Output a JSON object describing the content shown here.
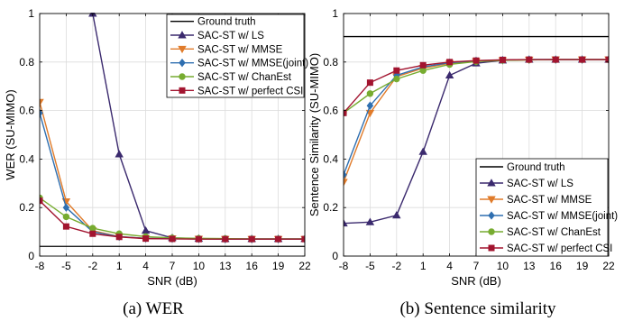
{
  "colors": {
    "ground_truth": "#000000",
    "ls": "#3b2a6e",
    "mmse": "#e07b2a",
    "mmse_joint": "#2f6fb0",
    "chanest": "#77ac30",
    "perfect": "#a2142f"
  },
  "captions": [
    "(a) WER",
    "(b) Sentence similarity"
  ],
  "chart_data": [
    {
      "type": "line",
      "xlabel": "SNR (dB)",
      "ylabel": "WER (SU-MIMO)",
      "x": [
        -8,
        -5,
        -2,
        1,
        4,
        7,
        10,
        13,
        16,
        19,
        22
      ],
      "xticks": [
        "-8",
        "-5",
        "-2",
        "1",
        "4",
        "7",
        "10",
        "13",
        "16",
        "19",
        "22"
      ],
      "ylim": [
        0,
        1
      ],
      "yticks": [
        "0",
        "0.2",
        "0.4",
        "0.6",
        "0.8",
        "1"
      ],
      "grid": true,
      "legend_position": "top-right",
      "series": [
        {
          "name": "Ground truth",
          "marker": "none",
          "color_key": "ground_truth",
          "values": [
            0.04,
            0.04,
            0.04,
            0.04,
            0.04,
            0.04,
            0.04,
            0.04,
            0.04,
            0.04,
            0.04
          ]
        },
        {
          "name": "SAC-ST w/ LS",
          "marker": "triangle-up",
          "color_key": "ls",
          "values": [
            null,
            null,
            1.0,
            0.42,
            0.105,
            0.075,
            0.072,
            0.071,
            0.071,
            0.071,
            0.071
          ]
        },
        {
          "name": "SAC-ST w/ MMSE",
          "marker": "triangle-down",
          "color_key": "mmse",
          "values": [
            0.635,
            0.225,
            0.105,
            0.08,
            0.073,
            0.072,
            0.071,
            0.07,
            0.07,
            0.07,
            0.07
          ]
        },
        {
          "name": "SAC-ST w/ MMSE(joint)",
          "marker": "diamond",
          "color_key": "mmse_joint",
          "values": [
            0.59,
            0.2,
            0.1,
            0.08,
            0.073,
            0.072,
            0.071,
            0.07,
            0.07,
            0.07,
            0.07
          ]
        },
        {
          "name": "SAC-ST w/ ChanEst",
          "marker": "circle",
          "color_key": "chanest",
          "values": [
            0.24,
            0.162,
            0.115,
            0.092,
            0.08,
            0.075,
            0.073,
            0.072,
            0.071,
            0.071,
            0.071
          ]
        },
        {
          "name": "SAC-ST w/ perfect CSI",
          "marker": "square",
          "color_key": "perfect",
          "values": [
            0.228,
            0.122,
            0.092,
            0.079,
            0.072,
            0.071,
            0.07,
            0.07,
            0.07,
            0.07,
            0.07
          ]
        }
      ]
    },
    {
      "type": "line",
      "xlabel": "SNR (dB)",
      "ylabel": "Sentence Similarity (SU-MIMO)",
      "x": [
        -8,
        -5,
        -2,
        1,
        4,
        7,
        10,
        13,
        16,
        19,
        22
      ],
      "xticks": [
        "-8",
        "-5",
        "-2",
        "1",
        "4",
        "7",
        "10",
        "13",
        "16",
        "19",
        "22"
      ],
      "ylim": [
        0,
        1
      ],
      "yticks": [
        "0",
        "0.2",
        "0.4",
        "0.6",
        "0.8",
        "1"
      ],
      "grid": true,
      "legend_position": "bottom-right",
      "series": [
        {
          "name": "Ground truth",
          "marker": "none",
          "color_key": "ground_truth",
          "values": [
            0.905,
            0.905,
            0.905,
            0.905,
            0.905,
            0.905,
            0.905,
            0.905,
            0.905,
            0.905,
            0.905
          ]
        },
        {
          "name": "SAC-ST w/ LS",
          "marker": "triangle-up",
          "color_key": "ls",
          "values": [
            0.135,
            0.14,
            0.168,
            0.43,
            0.745,
            0.795,
            0.807,
            0.81,
            0.81,
            0.81,
            0.81
          ]
        },
        {
          "name": "SAC-ST w/ MMSE",
          "marker": "triangle-down",
          "color_key": "mmse",
          "values": [
            0.305,
            0.59,
            0.74,
            0.775,
            0.795,
            0.803,
            0.807,
            0.809,
            0.81,
            0.81,
            0.81
          ]
        },
        {
          "name": "SAC-ST w/ MMSE(joint)",
          "marker": "diamond",
          "color_key": "mmse_joint",
          "values": [
            0.335,
            0.62,
            0.745,
            0.78,
            0.797,
            0.805,
            0.808,
            0.81,
            0.81,
            0.81,
            0.81
          ]
        },
        {
          "name": "SAC-ST w/ ChanEst",
          "marker": "circle",
          "color_key": "chanest",
          "values": [
            0.59,
            0.67,
            0.73,
            0.765,
            0.79,
            0.802,
            0.807,
            0.809,
            0.81,
            0.81,
            0.81
          ]
        },
        {
          "name": "SAC-ST w/ perfect CSI",
          "marker": "square",
          "color_key": "perfect",
          "values": [
            0.59,
            0.715,
            0.765,
            0.787,
            0.8,
            0.806,
            0.809,
            0.81,
            0.81,
            0.81,
            0.81
          ]
        }
      ]
    }
  ]
}
